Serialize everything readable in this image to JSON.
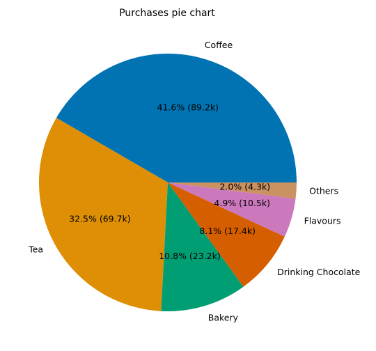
{
  "chart_data": {
    "type": "pie",
    "title": "Purchases pie chart",
    "start_angle_deg": 0,
    "direction": "counterclockwise",
    "slices": [
      {
        "label": "Coffee",
        "percent": 41.6,
        "value_text": "89.2k",
        "pct_text": "41.6% (89.2k)",
        "color": "#0173b2"
      },
      {
        "label": "Tea",
        "percent": 32.5,
        "value_text": "69.7k",
        "pct_text": "32.5% (69.7k)",
        "color": "#de8f05"
      },
      {
        "label": "Bakery",
        "percent": 10.8,
        "value_text": "23.2k",
        "pct_text": "10.8% (23.2k)",
        "color": "#029e73"
      },
      {
        "label": "Drinking Chocolate",
        "percent": 8.1,
        "value_text": "17.4k",
        "pct_text": "8.1% (17.4k)",
        "color": "#d55e00"
      },
      {
        "label": "Flavours",
        "percent": 4.9,
        "value_text": "10.5k",
        "pct_text": "4.9% (10.5k)",
        "color": "#cc78bc"
      },
      {
        "label": "Others",
        "percent": 2.0,
        "value_text": "4.3k",
        "pct_text": "2.0% (4.3k)",
        "color": "#ca9161"
      }
    ]
  }
}
